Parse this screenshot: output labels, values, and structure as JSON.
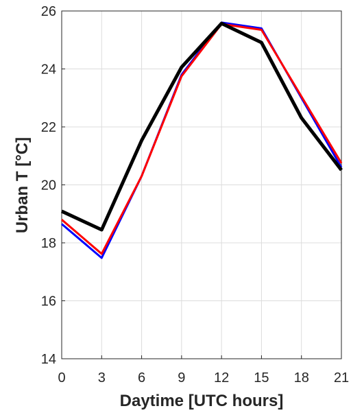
{
  "chart_data": {
    "type": "line",
    "xlabel": "Daytime [UTC hours]",
    "ylabel": "Urban T [°C]",
    "x": [
      0,
      3,
      6,
      9,
      12,
      15,
      18,
      21
    ],
    "series": [
      {
        "color": "#0000ff",
        "values": [
          18.65,
          17.48,
          20.3,
          23.8,
          25.6,
          25.4,
          23.0,
          20.6
        ]
      },
      {
        "color": "#ff0000",
        "values": [
          18.8,
          17.62,
          20.3,
          23.75,
          25.55,
          25.35,
          23.05,
          20.75
        ]
      },
      {
        "color": "#000000",
        "values": [
          19.09,
          18.45,
          21.53,
          24.06,
          25.57,
          24.91,
          22.31,
          20.51
        ]
      }
    ],
    "xlim": [
      0,
      21
    ],
    "xticks": [
      0,
      3,
      6,
      9,
      12,
      15,
      18,
      21
    ],
    "ylim": [
      14,
      26
    ],
    "yticks": [
      14,
      16,
      18,
      20,
      22,
      24,
      26
    ],
    "grid": true
  }
}
